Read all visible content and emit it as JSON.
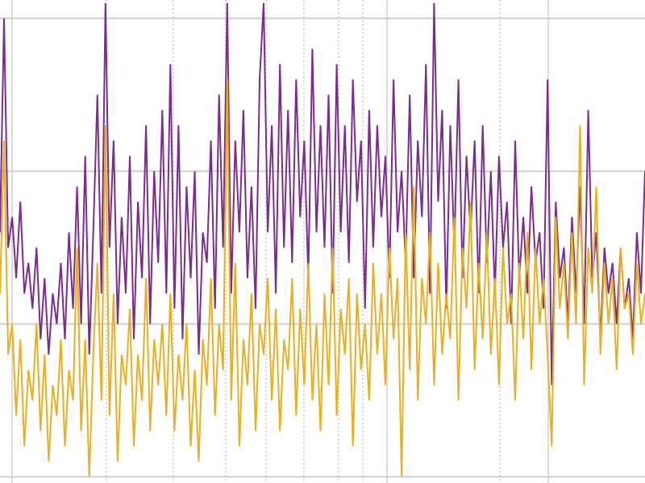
{
  "chart_data": {
    "type": "line",
    "ylim": [
      -0.04,
      3.12
    ],
    "yticks": [
      0,
      1,
      2,
      3
    ],
    "grid": true,
    "series": [
      {
        "color": "#7b2d8e",
        "values": [
          1.6,
          3.0,
          1.5,
          1.7,
          1.3,
          1.8,
          1.2,
          1.4,
          1.1,
          1.5,
          0.9,
          1.3,
          0.8,
          1.2,
          1.0,
          1.4,
          0.9,
          1.6,
          1.1,
          1.9,
          1.0,
          2.1,
          0.8,
          1.6,
          2.5,
          1.2,
          3.1,
          1.5,
          2.2,
          1.0,
          1.7,
          1.2,
          2.1,
          0.9,
          1.8,
          1.3,
          2.3,
          1.0,
          2.0,
          1.4,
          2.4,
          1.2,
          2.7,
          1.1,
          2.3,
          0.9,
          1.9,
          1.3,
          2.0,
          0.8,
          1.6,
          1.4,
          2.2,
          1.1,
          2.5,
          1.5,
          3.1,
          1.2,
          2.2,
          1.6,
          2.4,
          1.3,
          1.9,
          1.1,
          2.6,
          3.1,
          1.6,
          2.3,
          1.2,
          2.7,
          1.5,
          2.4,
          1.4,
          2.6,
          1.7,
          2.2,
          1.3,
          2.8,
          1.6,
          2.3,
          1.5,
          2.5,
          1.2,
          2.7,
          1.6,
          2.3,
          1.4,
          2.6,
          1.8,
          2.2,
          1.1,
          2.4,
          1.5,
          2.3,
          1.7,
          2.1,
          1.3,
          2.6,
          1.6,
          2.0,
          1.4,
          2.5,
          1.3,
          2.2,
          1.7,
          2.7,
          1.2,
          3.1,
          1.8,
          2.4,
          1.1,
          2.3,
          1.5,
          2.6,
          1.3,
          2.1,
          1.6,
          2.2,
          1.2,
          2.3,
          1.4,
          2.0,
          1.2,
          2.1,
          1.5,
          1.8,
          1.0,
          2.2,
          1.3,
          1.7,
          1.2,
          1.9,
          1.4,
          1.6,
          1.1,
          2.6,
          0.6,
          1.8,
          1.3,
          1.5,
          1.0,
          1.7,
          1.2,
          1.9,
          1.0,
          2.4,
          1.3,
          1.6,
          0.9,
          1.5,
          1.2,
          1.4,
          1.0,
          1.5,
          1.1,
          1.3,
          0.9,
          1.6,
          1.2,
          2.0
        ]
      },
      {
        "color": "#e8b020",
        "values": [
          1.2,
          2.2,
          0.8,
          1.0,
          0.4,
          0.9,
          0.2,
          0.7,
          0.5,
          1.0,
          0.3,
          0.8,
          0.1,
          0.6,
          0.4,
          0.9,
          0.2,
          0.7,
          0.5,
          1.5,
          0.3,
          0.9,
          0.0,
          0.8,
          1.4,
          0.5,
          2.3,
          0.4,
          1.2,
          0.1,
          0.8,
          0.6,
          1.1,
          0.2,
          0.8,
          0.5,
          1.3,
          0.3,
          0.9,
          0.6,
          1.0,
          0.4,
          1.2,
          0.3,
          0.8,
          0.5,
          1.0,
          0.2,
          0.7,
          0.1,
          0.9,
          0.6,
          1.3,
          0.4,
          1.0,
          0.7,
          2.6,
          0.5,
          1.4,
          0.2,
          0.9,
          0.6,
          1.2,
          0.3,
          1.0,
          0.8,
          1.3,
          0.5,
          1.1,
          0.3,
          0.9,
          0.7,
          1.3,
          0.4,
          1.1,
          0.6,
          1.4,
          0.5,
          1.0,
          0.3,
          1.2,
          0.6,
          1.5,
          0.4,
          1.1,
          0.8,
          1.3,
          0.2,
          1.2,
          0.7,
          1.0,
          0.5,
          1.4,
          0.8,
          1.2,
          0.6,
          1.5,
          0.9,
          1.3,
          0.0,
          1.6,
          0.7,
          1.9,
          0.5,
          1.3,
          1.0,
          1.6,
          0.6,
          1.4,
          0.8,
          1.2,
          0.9,
          1.7,
          0.5,
          1.5,
          1.1,
          1.8,
          0.7,
          1.4,
          0.9,
          1.6,
          0.8,
          1.3,
          0.6,
          1.5,
          1.0,
          1.2,
          0.5,
          1.4,
          0.9,
          1.6,
          0.7,
          1.5,
          1.0,
          1.3,
          0.8,
          0.2,
          1.7,
          1.1,
          1.4,
          0.9,
          1.6,
          1.0,
          2.3,
          0.6,
          1.5,
          1.2,
          1.9,
          0.8,
          1.4,
          1.0,
          1.3,
          0.7,
          1.5,
          1.1,
          1.2,
          0.8,
          1.4,
          1.0,
          1.2
        ]
      }
    ]
  }
}
